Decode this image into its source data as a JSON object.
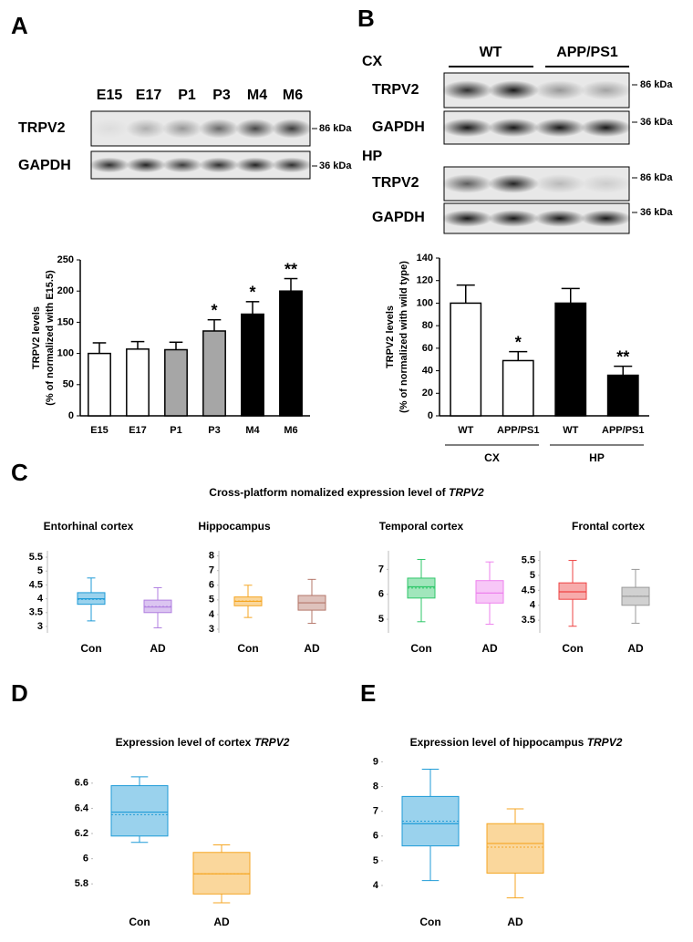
{
  "panel_labels": [
    "A",
    "B",
    "C",
    "D",
    "E"
  ],
  "blot_a": {
    "lanes": [
      "E15",
      "E17",
      "P1",
      "P3",
      "M4",
      "M6"
    ],
    "rows": [
      "TRPV2",
      "GAPDH"
    ],
    "sizes": [
      "86 kDa",
      "36 kDa"
    ]
  },
  "blot_b": {
    "groups": [
      "WT",
      "APP/PS1"
    ],
    "regions": [
      "CX",
      "HP"
    ],
    "rows": [
      "TRPV2",
      "GAPDH"
    ],
    "sizes": [
      "86 kDa",
      "36 kDa"
    ]
  },
  "panel_c": {
    "title": "Cross-platform nomalized expression level of",
    "title_gene": "TRPV2"
  },
  "chart_data": [
    {
      "type": "bar",
      "ylabel": [
        "TRPV2 levels",
        "(% of normalized with E15.5)"
      ],
      "categories": [
        "E15",
        "E17",
        "P1",
        "P3",
        "M4",
        "M6"
      ],
      "values": [
        100,
        107,
        106,
        136,
        163,
        200
      ],
      "errors": [
        17,
        12,
        12,
        18,
        20,
        20
      ],
      "colors": [
        "#ffffff",
        "#ffffff",
        "#a6a6a6",
        "#a6a6a6",
        "#000000",
        "#000000"
      ],
      "significance": [
        null,
        null,
        null,
        "*",
        "*",
        "**"
      ],
      "ylim": [
        0,
        250
      ],
      "yticks": [
        0,
        50,
        100,
        150,
        200,
        250
      ]
    },
    {
      "type": "bar",
      "ylabel": [
        "TRPV2 levels",
        "(% of normalized with wild type)"
      ],
      "categories": [
        "WT",
        "APP/PS1",
        "WT",
        "APP/PS1"
      ],
      "groups": [
        "CX",
        "HP"
      ],
      "values": [
        100,
        49,
        100,
        36
      ],
      "errors": [
        16,
        8,
        13,
        8
      ],
      "colors": [
        "#ffffff",
        "#ffffff",
        "#000000",
        "#000000"
      ],
      "significance": [
        null,
        "*",
        null,
        "**"
      ],
      "ylim": [
        0,
        140
      ],
      "yticks": [
        0,
        20,
        40,
        60,
        80,
        100,
        120,
        140
      ]
    },
    {
      "type": "box",
      "title": "Entorhinal cortex",
      "ylim": [
        2.9,
        5.6
      ],
      "yticks": [
        3,
        3.5,
        4,
        4.5,
        5,
        5.5
      ],
      "series": [
        {
          "name": "Con",
          "color": "#1f9bd7",
          "whisker_low": 3.2,
          "q1": 3.8,
          "median": 4.0,
          "mean": 3.98,
          "q3": 4.22,
          "whisker_high": 4.75
        },
        {
          "name": "AD",
          "color": "#b07fe0",
          "whisker_low": 2.95,
          "q1": 3.5,
          "median": 3.7,
          "mean": 3.72,
          "q3": 3.95,
          "whisker_high": 4.4
        }
      ]
    },
    {
      "type": "box",
      "title": "Hippocampus",
      "ylim": [
        3,
        8.1
      ],
      "yticks": [
        3,
        4,
        5,
        6,
        7,
        8
      ],
      "series": [
        {
          "name": "Con",
          "color": "#f5a623",
          "whisker_low": 3.8,
          "q1": 4.6,
          "median": 4.9,
          "mean": 4.92,
          "q3": 5.2,
          "whisker_high": 6.0
        },
        {
          "name": "AD",
          "color": "#b5776a",
          "whisker_low": 3.4,
          "q1": 4.3,
          "median": 4.8,
          "mean": 4.8,
          "q3": 5.3,
          "whisker_high": 6.4
        }
      ]
    },
    {
      "type": "box",
      "title": "Temporal cortex",
      "ylim": [
        4.6,
        7.6
      ],
      "yticks": [
        5,
        6,
        7
      ],
      "series": [
        {
          "name": "Con",
          "color": "#2fc76a",
          "whisker_low": 4.9,
          "q1": 5.85,
          "median": 6.3,
          "mean": 6.25,
          "q3": 6.65,
          "whisker_high": 7.4
        },
        {
          "name": "AD",
          "color": "#ee82ee",
          "whisker_low": 4.8,
          "q1": 5.65,
          "median": 6.05,
          "mean": 6.05,
          "q3": 6.55,
          "whisker_high": 7.3
        }
      ]
    },
    {
      "type": "box",
      "title": "Frontal cortex",
      "ylim": [
        3.2,
        5.7
      ],
      "yticks": [
        3.5,
        4,
        4.5,
        5,
        5.5
      ],
      "series": [
        {
          "name": "Con",
          "color": "#ee4444",
          "whisker_low": 3.3,
          "q1": 4.2,
          "median": 4.45,
          "mean": 4.45,
          "q3": 4.75,
          "whisker_high": 5.5
        },
        {
          "name": "AD",
          "color": "#999999",
          "whisker_low": 3.4,
          "q1": 4.0,
          "median": 4.3,
          "mean": 4.3,
          "q3": 4.6,
          "whisker_high": 5.2
        }
      ]
    },
    {
      "type": "box",
      "title": "Expression level of cortex",
      "title_gene": "TRPV2",
      "ylim": [
        5.65,
        6.7
      ],
      "yticks": [
        5.8,
        6,
        6.2,
        6.4,
        6.6
      ],
      "series": [
        {
          "name": "Con",
          "color": "#1f9bd7",
          "whisker_low": 6.13,
          "q1": 6.18,
          "median": 6.37,
          "mean": 6.35,
          "q3": 6.58,
          "whisker_high": 6.65
        },
        {
          "name": "AD",
          "color": "#f5a623",
          "whisker_low": 5.65,
          "q1": 5.72,
          "median": 5.88,
          "mean": 5.88,
          "q3": 6.05,
          "whisker_high": 6.11
        }
      ]
    },
    {
      "type": "box",
      "title": "Expression level of hippocampus",
      "title_gene": "TRPV2",
      "ylim": [
        3.3,
        9.2
      ],
      "yticks": [
        4,
        5,
        6,
        7,
        8,
        9
      ],
      "series": [
        {
          "name": "Con",
          "color": "#1f9bd7",
          "whisker_low": 4.2,
          "q1": 5.6,
          "median": 6.5,
          "mean": 6.6,
          "q3": 7.6,
          "whisker_high": 8.7
        },
        {
          "name": "AD",
          "color": "#f5a623",
          "whisker_low": 3.5,
          "q1": 4.5,
          "median": 5.7,
          "mean": 5.55,
          "q3": 6.5,
          "whisker_high": 7.1
        }
      ]
    }
  ]
}
